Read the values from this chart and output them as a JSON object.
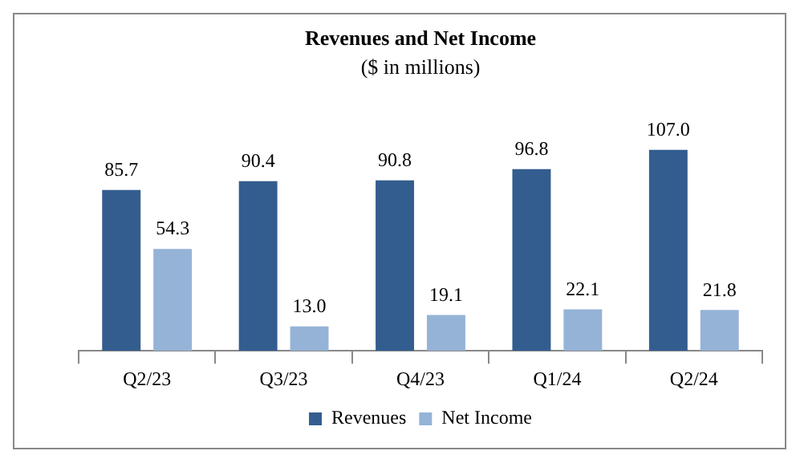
{
  "chart_data": {
    "type": "bar",
    "title": "Revenues and Net Income",
    "subtitle": "($ in millions)",
    "categories": [
      "Q2/23",
      "Q3/23",
      "Q4/23",
      "Q1/24",
      "Q2/24"
    ],
    "series": [
      {
        "name": "Revenues",
        "color": "#335d8f",
        "values": [
          85.7,
          90.4,
          90.8,
          96.8,
          107.0
        ],
        "value_labels": [
          "85.7",
          "90.4",
          "90.8",
          "96.8",
          "107.0"
        ]
      },
      {
        "name": "Net Income",
        "color": "#95b3d7",
        "values": [
          54.3,
          13.0,
          19.1,
          22.1,
          21.8
        ],
        "value_labels": [
          "54.3",
          "13.0",
          "19.1",
          "22.1",
          "21.8"
        ]
      }
    ],
    "legend": "bottom",
    "grid": false
  }
}
